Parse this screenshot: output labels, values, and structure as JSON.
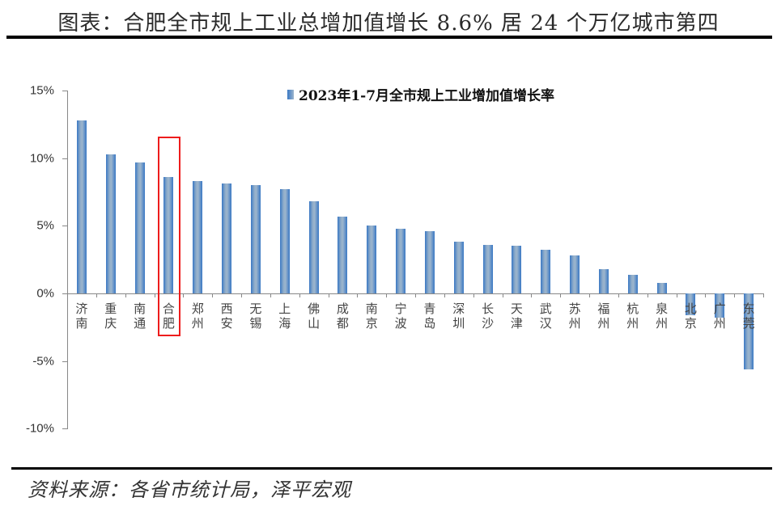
{
  "header": {
    "title": "图表：合肥全市规上工业总增加值增长 8.6% 居 24 个万亿城市第四"
  },
  "footer": {
    "source": "资料来源：各省市统计局，泽平宏观"
  },
  "colors": {
    "bar": "#3a78c4",
    "highlight_box": "#ee1c1c",
    "axis": "#888888"
  },
  "chart_data": {
    "type": "bar",
    "title": "图表：合肥全市规上工业总增加值增长 8.6% 居 24 个万亿城市第四",
    "xlabel": "",
    "ylabel": "",
    "ylim": [
      -10,
      15
    ],
    "yticks": [
      "15%",
      "10%",
      "5%",
      "0%",
      "-5%",
      "-10%"
    ],
    "ytick_values": [
      15,
      10,
      5,
      0,
      -5,
      -10
    ],
    "grid": false,
    "legend_position": "top-center",
    "categories": [
      "济南",
      "重庆",
      "南通",
      "合肥",
      "郑州",
      "西安",
      "无锡",
      "上海",
      "佛山",
      "成都",
      "南京",
      "宁波",
      "青岛",
      "深圳",
      "长沙",
      "天津",
      "武汉",
      "苏州",
      "福州",
      "杭州",
      "泉州",
      "北京",
      "广州",
      "东莞"
    ],
    "series": [
      {
        "name": "2023年1-7月全市规上工业增加值增长率",
        "values": [
          12.8,
          10.3,
          9.7,
          8.6,
          8.3,
          8.1,
          8.0,
          7.7,
          6.8,
          5.7,
          5.0,
          4.8,
          4.6,
          3.8,
          3.6,
          3.5,
          3.2,
          2.8,
          1.8,
          1.4,
          0.8,
          -1.6,
          -1.8,
          -5.6
        ],
        "unit": "%"
      }
    ],
    "highlighted_category": "合肥",
    "annotations": [
      "红框标注：合肥"
    ]
  }
}
